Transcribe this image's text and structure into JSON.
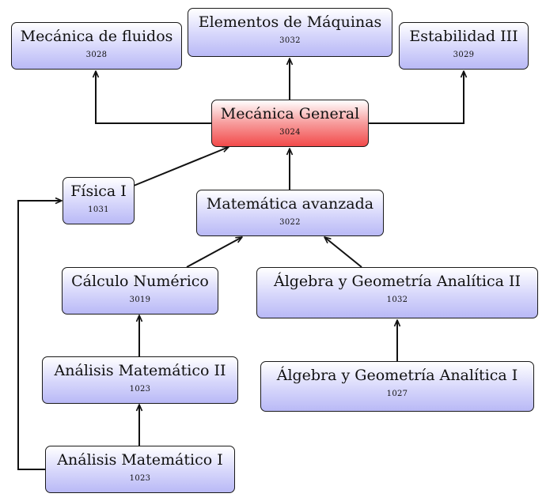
{
  "diagram": {
    "nodes": {
      "mecanica_fluidos": {
        "title": "Mecánica de fluidos",
        "code": "3028"
      },
      "elementos_maquinas": {
        "title": "Elementos de Máquinas",
        "code": "3032"
      },
      "estabilidad_3": {
        "title": "Estabilidad III",
        "code": "3029"
      },
      "mecanica_general": {
        "title": "Mecánica General",
        "code": "3024"
      },
      "fisica_1": {
        "title": "Física I",
        "code": "1031"
      },
      "matematica_avanzada": {
        "title": "Matemática avanzada",
        "code": "3022"
      },
      "calculo_numerico": {
        "title": "Cálculo Numérico",
        "code": "3019"
      },
      "algebra_geo_2": {
        "title": "Álgebra y Geometría Analítica II",
        "code": "1032"
      },
      "analisis_mat_2": {
        "title": "Análisis Matemático II",
        "code": "1023"
      },
      "algebra_geo_1": {
        "title": "Álgebra y Geometría Analítica I",
        "code": "1027"
      },
      "analisis_mat_1": {
        "title": "Análisis Matemático I",
        "code": "1023"
      }
    },
    "edges": [
      {
        "from": "mecanica_general",
        "to": "mecanica_fluidos"
      },
      {
        "from": "mecanica_general",
        "to": "elementos_maquinas"
      },
      {
        "from": "mecanica_general",
        "to": "estabilidad_3"
      },
      {
        "from": "fisica_1",
        "to": "mecanica_general"
      },
      {
        "from": "matematica_avanzada",
        "to": "mecanica_general"
      },
      {
        "from": "calculo_numerico",
        "to": "matematica_avanzada"
      },
      {
        "from": "algebra_geo_2",
        "to": "matematica_avanzada"
      },
      {
        "from": "analisis_mat_2",
        "to": "calculo_numerico"
      },
      {
        "from": "algebra_geo_1",
        "to": "algebra_geo_2"
      },
      {
        "from": "analisis_mat_1",
        "to": "analisis_mat_2"
      },
      {
        "from": "analisis_mat_1",
        "to": "fisica_1"
      }
    ]
  }
}
